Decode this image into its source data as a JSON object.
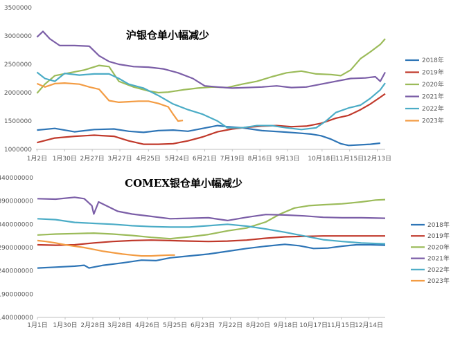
{
  "chart_data": [
    {
      "type": "line",
      "title": "沪银仓单小幅减少",
      "xlabel": "",
      "ylabel": "",
      "ylim": [
        1000000,
        3500000
      ],
      "yticks": [
        "1000000",
        "1500000",
        "2000000",
        "2500000",
        "3000000",
        "3500000"
      ],
      "yvals": [
        1000000,
        1500000,
        2000000,
        2500000,
        3000000,
        3500000
      ],
      "xlim": [
        1,
        355
      ],
      "xticks": [
        "1月2日",
        "1月30日",
        "2月27日",
        "3月27日",
        "4月25日",
        "5月24日",
        "6月21日",
        "7月19日",
        "8月16日",
        "9月13日",
        "10月18日",
        "11月15日",
        "12月13日"
      ],
      "xtick_days": [
        2,
        30,
        58,
        86,
        115,
        144,
        172,
        200,
        228,
        256,
        291,
        319,
        347
      ],
      "grid": false,
      "legend_position": "right",
      "series": [
        {
          "name": "2018年",
          "color": "#2E75B6",
          "x": [
            2,
            20,
            40,
            60,
            80,
            95,
            110,
            125,
            140,
            155,
            170,
            185,
            195,
            210,
            230,
            250,
            265,
            280,
            290,
            300,
            310,
            318,
            330,
            340,
            350
          ],
          "y": [
            1340000,
            1370000,
            1310000,
            1350000,
            1360000,
            1320000,
            1300000,
            1330000,
            1340000,
            1320000,
            1370000,
            1420000,
            1400000,
            1380000,
            1330000,
            1310000,
            1290000,
            1270000,
            1240000,
            1180000,
            1100000,
            1070000,
            1080000,
            1090000,
            1110000
          ]
        },
        {
          "name": "2019年",
          "color": "#C0392B",
          "x": [
            2,
            20,
            40,
            60,
            80,
            95,
            110,
            125,
            140,
            155,
            170,
            185,
            200,
            215,
            230,
            245,
            260,
            275,
            290,
            305,
            318,
            330,
            340,
            350,
            355
          ],
          "y": [
            1120000,
            1200000,
            1230000,
            1250000,
            1230000,
            1150000,
            1090000,
            1090000,
            1100000,
            1150000,
            1220000,
            1310000,
            1360000,
            1390000,
            1410000,
            1420000,
            1400000,
            1410000,
            1460000,
            1550000,
            1600000,
            1700000,
            1800000,
            1920000,
            1980000
          ]
        },
        {
          "name": "2020年",
          "color": "#9BBB59",
          "x": [
            2,
            10,
            20,
            35,
            50,
            65,
            75,
            85,
            100,
            115,
            125,
            135,
            150,
            165,
            180,
            195,
            210,
            225,
            240,
            255,
            270,
            285,
            300,
            310,
            320,
            330,
            340,
            350,
            355
          ],
          "y": [
            1990000,
            2150000,
            2300000,
            2350000,
            2400000,
            2480000,
            2460000,
            2200000,
            2100000,
            2030000,
            2000000,
            2010000,
            2050000,
            2080000,
            2100000,
            2090000,
            2150000,
            2200000,
            2280000,
            2350000,
            2380000,
            2330000,
            2320000,
            2300000,
            2400000,
            2600000,
            2720000,
            2850000,
            2950000
          ]
        },
        {
          "name": "2021年",
          "color": "#7B5EA7",
          "x": [
            2,
            8,
            15,
            25,
            40,
            55,
            65,
            75,
            85,
            100,
            115,
            130,
            145,
            160,
            172,
            185,
            200,
            215,
            230,
            245,
            260,
            275,
            290,
            305,
            320,
            335,
            345,
            350,
            355
          ],
          "y": [
            2980000,
            3080000,
            2950000,
            2830000,
            2830000,
            2820000,
            2650000,
            2550000,
            2500000,
            2460000,
            2450000,
            2420000,
            2350000,
            2250000,
            2120000,
            2100000,
            2080000,
            2090000,
            2100000,
            2120000,
            2090000,
            2100000,
            2150000,
            2200000,
            2250000,
            2260000,
            2280000,
            2200000,
            2360000
          ]
        },
        {
          "name": "2022年",
          "color": "#4BACC6",
          "x": [
            2,
            10,
            20,
            30,
            45,
            60,
            75,
            85,
            95,
            110,
            125,
            140,
            155,
            170,
            185,
            195,
            210,
            225,
            240,
            255,
            270,
            285,
            295,
            305,
            318,
            330,
            340,
            350,
            355
          ],
          "y": [
            2360000,
            2250000,
            2200000,
            2340000,
            2310000,
            2330000,
            2330000,
            2250000,
            2150000,
            2080000,
            1950000,
            1800000,
            1700000,
            1620000,
            1500000,
            1380000,
            1380000,
            1420000,
            1420000,
            1380000,
            1350000,
            1380000,
            1500000,
            1650000,
            1730000,
            1780000,
            1900000,
            2050000,
            2170000
          ]
        },
        {
          "name": "2023年",
          "color": "#F39C43",
          "x": [
            2,
            10,
            20,
            30,
            45,
            55,
            65,
            75,
            85,
            95,
            105,
            115,
            125,
            135,
            140,
            145,
            150
          ],
          "y": [
            2160000,
            2100000,
            2160000,
            2170000,
            2150000,
            2100000,
            2060000,
            1860000,
            1830000,
            1840000,
            1850000,
            1850000,
            1810000,
            1750000,
            1620000,
            1500000,
            1510000
          ]
        }
      ]
    },
    {
      "type": "line",
      "title": "COMEX银仓单小幅减少",
      "xlabel": "",
      "ylabel": "",
      "ylim": [
        140000000,
        440000000
      ],
      "yticks": [
        "140000000",
        "190000000",
        "240000000",
        "290000000",
        "340000000",
        "390000000",
        "440000000"
      ],
      "yvals": [
        140000000,
        190000000,
        240000000,
        290000000,
        340000000,
        390000000,
        440000000
      ],
      "xlim": [
        1,
        365
      ],
      "xticks": [
        "1月1日",
        "1月30日",
        "2月28日",
        "3月28日",
        "4月26日",
        "5月25日",
        "6月23日",
        "7月22日",
        "8月20日",
        "9月18日",
        "10月17日",
        "11月15日",
        "12月14日"
      ],
      "xtick_days": [
        1,
        30,
        59,
        87,
        116,
        145,
        174,
        203,
        232,
        261,
        290,
        319,
        348
      ],
      "grid": false,
      "legend_position": "right",
      "series": [
        {
          "name": "2018年",
          "color": "#2E75B6",
          "x": [
            1,
            20,
            40,
            50,
            55,
            70,
            90,
            110,
            125,
            140,
            160,
            180,
            200,
            220,
            240,
            260,
            275,
            290,
            305,
            320,
            335,
            350,
            365
          ],
          "y": [
            246000000,
            248000000,
            250000000,
            252000000,
            246000000,
            252000000,
            257000000,
            263000000,
            262000000,
            268000000,
            272000000,
            276000000,
            282000000,
            288000000,
            293000000,
            297000000,
            294000000,
            288000000,
            289000000,
            293000000,
            296000000,
            296000000,
            295000000
          ]
        },
        {
          "name": "2019年",
          "color": "#C0392B",
          "x": [
            1,
            20,
            40,
            60,
            80,
            100,
            120,
            140,
            160,
            180,
            200,
            220,
            240,
            260,
            280,
            300,
            320,
            340,
            365
          ],
          "y": [
            296000000,
            295000000,
            296000000,
            300000000,
            303000000,
            305000000,
            306000000,
            305000000,
            304000000,
            303000000,
            304000000,
            306000000,
            310000000,
            313000000,
            314000000,
            315000000,
            315000000,
            315000000,
            315000000
          ]
        },
        {
          "name": "2020年",
          "color": "#9BBB59",
          "x": [
            1,
            20,
            40,
            60,
            80,
            100,
            120,
            140,
            160,
            180,
            200,
            220,
            240,
            255,
            270,
            285,
            300,
            320,
            340,
            355,
            365
          ],
          "y": [
            317000000,
            319000000,
            320000000,
            321000000,
            319000000,
            316000000,
            312000000,
            309000000,
            313000000,
            318000000,
            326000000,
            332000000,
            345000000,
            362000000,
            375000000,
            380000000,
            382000000,
            384000000,
            388000000,
            392000000,
            393000000
          ]
        },
        {
          "name": "2021年",
          "color": "#7B5EA7",
          "x": [
            1,
            20,
            40,
            50,
            58,
            60,
            65,
            75,
            85,
            100,
            120,
            140,
            160,
            180,
            200,
            220,
            240,
            260,
            280,
            300,
            320,
            340,
            365
          ],
          "y": [
            395000000,
            394000000,
            398000000,
            395000000,
            380000000,
            362000000,
            388000000,
            378000000,
            368000000,
            362000000,
            357000000,
            352000000,
            353000000,
            354000000,
            348000000,
            355000000,
            361000000,
            360000000,
            358000000,
            355000000,
            354000000,
            354000000,
            353000000
          ]
        },
        {
          "name": "2022年",
          "color": "#4BACC6",
          "x": [
            1,
            20,
            40,
            60,
            80,
            100,
            120,
            140,
            160,
            180,
            200,
            220,
            240,
            260,
            280,
            300,
            320,
            340,
            365
          ],
          "y": [
            352000000,
            350000000,
            344000000,
            342000000,
            340000000,
            337000000,
            335000000,
            334000000,
            334000000,
            337000000,
            340000000,
            336000000,
            330000000,
            323000000,
            315000000,
            307000000,
            303000000,
            300000000,
            298000000
          ]
        },
        {
          "name": "2023年",
          "color": "#F39C43",
          "x": [
            1,
            10,
            20,
            30,
            40,
            50,
            60,
            70,
            80,
            90,
            100,
            110,
            120,
            130,
            140,
            145
          ],
          "y": [
            305000000,
            303000000,
            300000000,
            296000000,
            293000000,
            290000000,
            286000000,
            282000000,
            279000000,
            276000000,
            274000000,
            272000000,
            272000000,
            273000000,
            274000000,
            274000000
          ]
        }
      ]
    }
  ]
}
